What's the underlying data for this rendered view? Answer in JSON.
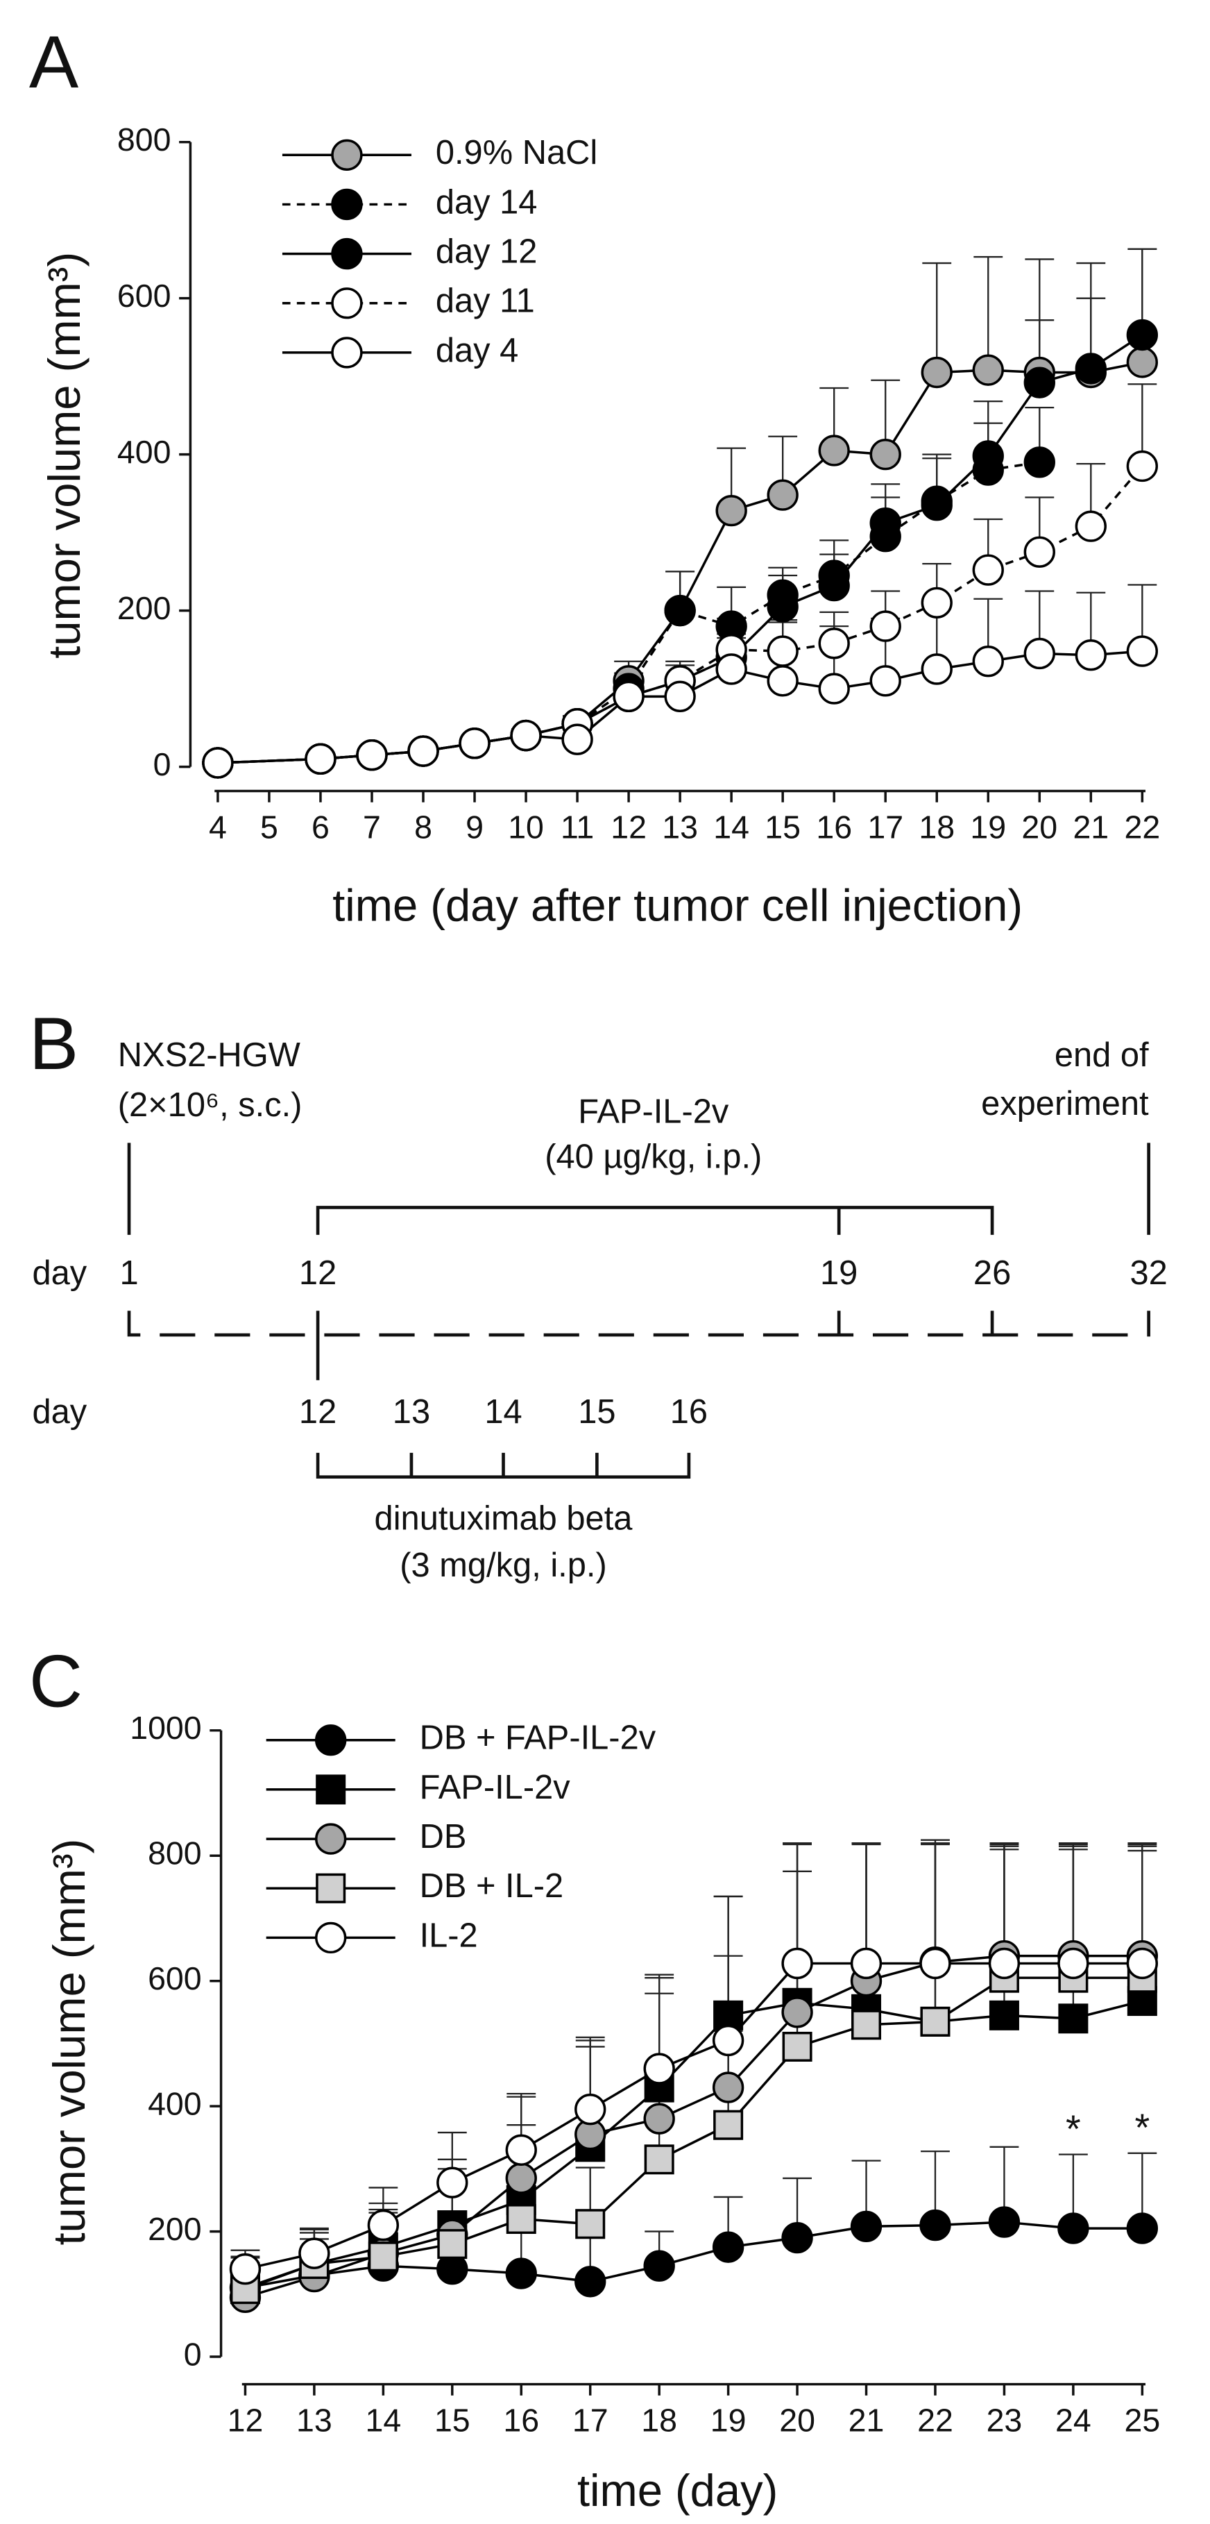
{
  "chart_data": [
    {
      "type": "line",
      "panel": "A",
      "x_label": "time (day after tumor cell injection)",
      "y_label": "tumor volume (mm³)",
      "x": [
        4,
        6,
        7,
        8,
        9,
        10,
        11,
        12,
        13,
        14,
        15,
        16,
        17,
        18,
        19,
        20,
        21,
        22
      ],
      "xlim": [
        4,
        22
      ],
      "xticks": [
        4,
        5,
        6,
        7,
        8,
        9,
        10,
        11,
        12,
        13,
        14,
        15,
        16,
        17,
        18,
        19,
        20,
        21,
        22
      ],
      "ylim": [
        0,
        800
      ],
      "yticks": [
        0,
        200,
        400,
        600,
        800
      ],
      "legend": "upper left",
      "series": [
        {
          "name": "0.9% NaCl",
          "color": "#000000",
          "fill": "#a6a6a6",
          "marker": "circle",
          "dash": false,
          "values": [
            5,
            10,
            15,
            20,
            30,
            40,
            55,
            110,
            200,
            328,
            348,
            405,
            400,
            505,
            508,
            505,
            505,
            518
          ],
          "errors": [
            2,
            3,
            3,
            4,
            5,
            8,
            10,
            25,
            50,
            80,
            75,
            80,
            95,
            140,
            145,
            145,
            140,
            145
          ]
        },
        {
          "name": "day 14",
          "color": "#000000",
          "fill": "#000000",
          "marker": "circle",
          "dash": true,
          "values": [
            5,
            10,
            15,
            20,
            30,
            40,
            55,
            100,
            200,
            180,
            220,
            245,
            295,
            340,
            380,
            390,
            null,
            null
          ],
          "errors": [
            2,
            3,
            3,
            4,
            5,
            8,
            10,
            20,
            50,
            50,
            35,
            45,
            50,
            55,
            60,
            70,
            null,
            null
          ]
        },
        {
          "name": "day 12",
          "color": "#000000",
          "fill": "#000000",
          "marker": "circle",
          "dash": false,
          "values": [
            5,
            10,
            15,
            20,
            30,
            40,
            55,
            90,
            110,
            140,
            205,
            232,
            312,
            335,
            398,
            492,
            510,
            553
          ],
          "errors": [
            2,
            3,
            3,
            4,
            5,
            8,
            10,
            20,
            25,
            30,
            40,
            40,
            50,
            65,
            70,
            80,
            90,
            110
          ]
        },
        {
          "name": "day 11",
          "color": "#000000",
          "fill": "#ffffff",
          "marker": "circle",
          "dash": true,
          "values": [
            5,
            10,
            15,
            20,
            30,
            40,
            55,
            90,
            110,
            150,
            148,
            158,
            180,
            210,
            252,
            275,
            308,
            385
          ],
          "errors": [
            2,
            3,
            3,
            4,
            5,
            8,
            10,
            20,
            20,
            40,
            40,
            40,
            45,
            50,
            65,
            70,
            80,
            105
          ]
        },
        {
          "name": "day 4",
          "color": "#000000",
          "fill": "#ffffff",
          "marker": "circle",
          "dash": false,
          "values": [
            5,
            10,
            15,
            20,
            30,
            40,
            35,
            90,
            90,
            125,
            110,
            100,
            110,
            125,
            135,
            145,
            143,
            148
          ],
          "errors": [
            2,
            3,
            3,
            4,
            5,
            8,
            8,
            20,
            20,
            40,
            75,
            80,
            80,
            80,
            80,
            80,
            80,
            85
          ]
        }
      ]
    },
    {
      "type": "line",
      "panel": "C",
      "x_label": "time (day)",
      "y_label": "tumor volume (mm³)",
      "x": [
        12,
        13,
        14,
        15,
        16,
        17,
        18,
        19,
        20,
        21,
        22,
        23,
        24,
        25
      ],
      "xlim": [
        12,
        25
      ],
      "xticks": [
        12,
        13,
        14,
        15,
        16,
        17,
        18,
        19,
        20,
        21,
        22,
        23,
        24,
        25
      ],
      "ylim": [
        0,
        1000
      ],
      "yticks": [
        0,
        200,
        400,
        600,
        800,
        1000
      ],
      "legend": "upper left",
      "series": [
        {
          "name": "DB + FAP-IL-2v",
          "color": "#000000",
          "fill": "#000000",
          "marker": "circle",
          "dash": false,
          "values": [
            110,
            130,
            145,
            140,
            133,
            120,
            145,
            175,
            190,
            208,
            210,
            215,
            205,
            205
          ],
          "errors": [
            40,
            40,
            40,
            50,
            70,
            80,
            55,
            80,
            95,
            105,
            118,
            120,
            118,
            120
          ]
        },
        {
          "name": "FAP-IL-2v",
          "color": "#000000",
          "fill": "#000000",
          "marker": "square",
          "dash": false,
          "values": [
            110,
            148,
            175,
            210,
            250,
            335,
            430,
            545,
            565,
            555,
            535,
            545,
            540,
            568
          ],
          "errors": [
            50,
            55,
            60,
            90,
            120,
            160,
            175,
            190,
            255,
            265,
            285,
            265,
            270,
            240
          ]
        },
        {
          "name": "DB",
          "color": "#000000",
          "fill": "#a6a6a6",
          "marker": "circle",
          "dash": false,
          "values": [
            95,
            128,
            165,
            195,
            285,
            355,
            380,
            430,
            550,
            600,
            630,
            640,
            640,
            640
          ],
          "errors": [
            50,
            60,
            80,
            120,
            130,
            150,
            200,
            210,
            270,
            220,
            190,
            180,
            180,
            180
          ]
        },
        {
          "name": "DB + IL-2",
          "color": "#000000",
          "fill": "#d0d0d0",
          "marker": "square",
          "dash": false,
          "values": [
            108,
            148,
            160,
            180,
            220,
            212,
            315,
            370,
            495,
            530,
            535,
            605,
            605,
            605
          ],
          "errors": [
            50,
            50,
            70,
            100,
            110,
            90,
            100,
            150,
            280,
            290,
            290,
            210,
            210,
            210
          ]
        },
        {
          "name": "IL-2",
          "color": "#000000",
          "fill": "#ffffff",
          "marker": "circle",
          "dash": false,
          "values": [
            140,
            165,
            210,
            278,
            330,
            395,
            460,
            505,
            628,
            628,
            628,
            628,
            628,
            628
          ],
          "errors": [
            30,
            40,
            60,
            80,
            90,
            115,
            150,
            230,
            190,
            190,
            190,
            190,
            190,
            190
          ]
        }
      ],
      "annotations": [
        {
          "x": 24,
          "text": "*"
        },
        {
          "x": 25,
          "text": "*"
        }
      ]
    }
  ],
  "timeline": {
    "panel": "B",
    "start_label": [
      "NXS2-HGW",
      "(2×10⁶, s.c.)"
    ],
    "end_label": [
      "end of",
      "experiment"
    ],
    "treatment_1": [
      "FAP-IL-2v",
      "(40 µg/kg, i.p.)"
    ],
    "treatment_2": [
      "dinutuximab beta",
      "(3 mg/kg, i.p.)"
    ],
    "rows": [
      {
        "label": "day",
        "days": [
          "1",
          "12",
          "19",
          "26",
          "32"
        ]
      },
      {
        "label": "day",
        "days": [
          "12",
          "13",
          "14",
          "15",
          "16"
        ]
      }
    ]
  }
}
